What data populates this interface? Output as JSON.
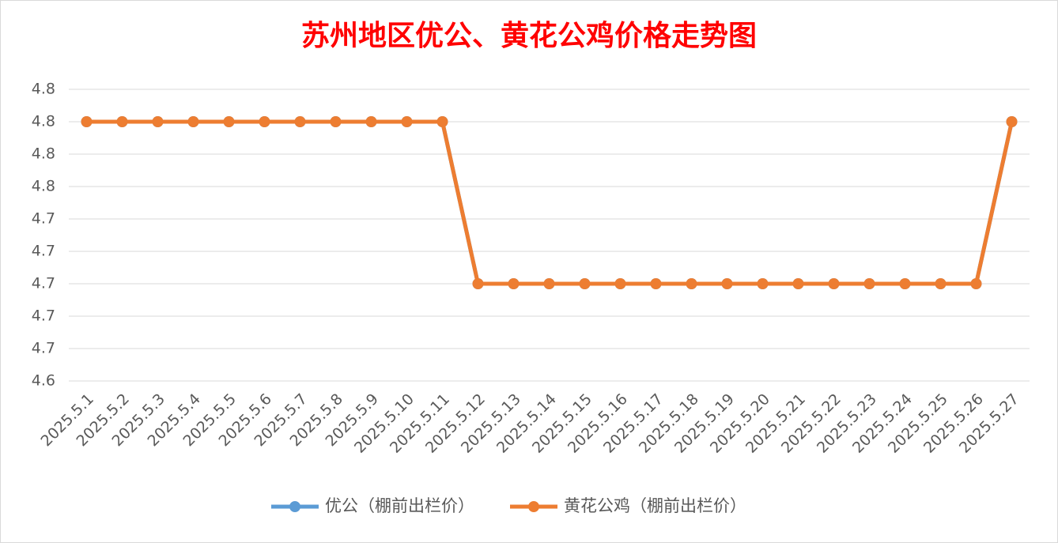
{
  "chart_data": {
    "type": "line",
    "title": "苏州地区优公、黄花公鸡价格走势图",
    "categories": [
      "2025.5.1",
      "2025.5.2",
      "2025.5.3",
      "2025.5.4",
      "2025.5.5",
      "2025.5.6",
      "2025.5.7",
      "2025.5.8",
      "2025.5.9",
      "2025.5.10",
      "2025.5.11",
      "2025.5.12",
      "2025.5.13",
      "2025.5.14",
      "2025.5.15",
      "2025.5.16",
      "2025.5.17",
      "2025.5.18",
      "2025.5.19",
      "2025.5.20",
      "2025.5.21",
      "2025.5.22",
      "2025.5.23",
      "2025.5.24",
      "2025.5.25",
      "2025.5.26",
      "2025.5.27"
    ],
    "series": [
      {
        "name": "优公（棚前出栏价）",
        "color": "#5b9bd5",
        "values": [
          4.8,
          4.8,
          4.8,
          4.8,
          4.8,
          4.8,
          4.8,
          4.8,
          4.8,
          4.8,
          4.8,
          4.7,
          4.7,
          4.7,
          4.7,
          4.7,
          4.7,
          4.7,
          4.7,
          4.7,
          4.7,
          4.7,
          4.7,
          4.7,
          4.7,
          4.7,
          4.8
        ]
      },
      {
        "name": "黄花公鸡（棚前出栏价）",
        "color": "#ed7d31",
        "values": [
          4.8,
          4.8,
          4.8,
          4.8,
          4.8,
          4.8,
          4.8,
          4.8,
          4.8,
          4.8,
          4.8,
          4.7,
          4.7,
          4.7,
          4.7,
          4.7,
          4.7,
          4.7,
          4.7,
          4.7,
          4.7,
          4.7,
          4.7,
          4.7,
          4.7,
          4.7,
          4.8
        ]
      }
    ],
    "ylim": [
      4.64,
      4.82
    ],
    "yticks": [
      {
        "value": 4.64,
        "label": "4.6"
      },
      {
        "value": 4.66,
        "label": "4.7"
      },
      {
        "value": 4.68,
        "label": "4.7"
      },
      {
        "value": 4.7,
        "label": "4.7"
      },
      {
        "value": 4.72,
        "label": "4.7"
      },
      {
        "value": 4.74,
        "label": "4.7"
      },
      {
        "value": 4.76,
        "label": "4.8"
      },
      {
        "value": 4.78,
        "label": "4.8"
      },
      {
        "value": 4.8,
        "label": "4.8"
      },
      {
        "value": 4.82,
        "label": "4.8"
      }
    ],
    "grid": true,
    "legend": "bottom"
  }
}
